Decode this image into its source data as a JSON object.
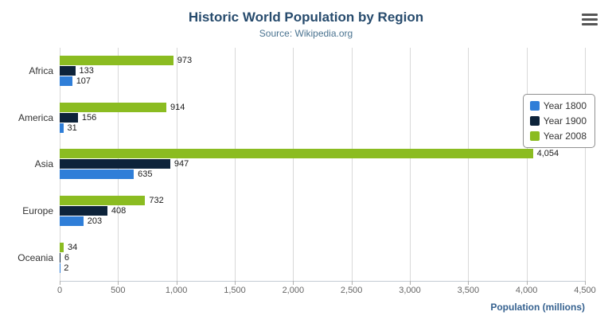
{
  "chart_data": {
    "type": "bar",
    "orientation": "horizontal",
    "title": "Historic World Population by Region",
    "subtitle": "Source: Wikipedia.org",
    "xlabel": "Population (millions)",
    "categories": [
      "Africa",
      "America",
      "Asia",
      "Europe",
      "Oceania"
    ],
    "series": [
      {
        "name": "Year 1800",
        "color": "#2f7ed8",
        "values": [
          107,
          31,
          635,
          203,
          2
        ]
      },
      {
        "name": "Year 1900",
        "color": "#0d233a",
        "values": [
          133,
          156,
          947,
          408,
          6
        ]
      },
      {
        "name": "Year 2008",
        "color": "#8bbc21",
        "values": [
          973,
          914,
          4054,
          732,
          34
        ]
      }
    ],
    "bar_order_top_to_bottom": [
      "Year 2008",
      "Year 1900",
      "Year 1800"
    ],
    "xlim": [
      0,
      4500
    ],
    "tick_step": 500,
    "tick_labels": [
      "0",
      "500",
      "1,000",
      "1,500",
      "2,000",
      "2,500",
      "3,000",
      "3,500",
      "4,000",
      "4,500"
    ],
    "grid": true,
    "legend_position": "right",
    "colors": {
      "title": "#274b6d",
      "subtitle": "#4a7390",
      "axis_title": "#35618f"
    }
  },
  "menu": {
    "icon": "hamburger-menu-icon"
  }
}
